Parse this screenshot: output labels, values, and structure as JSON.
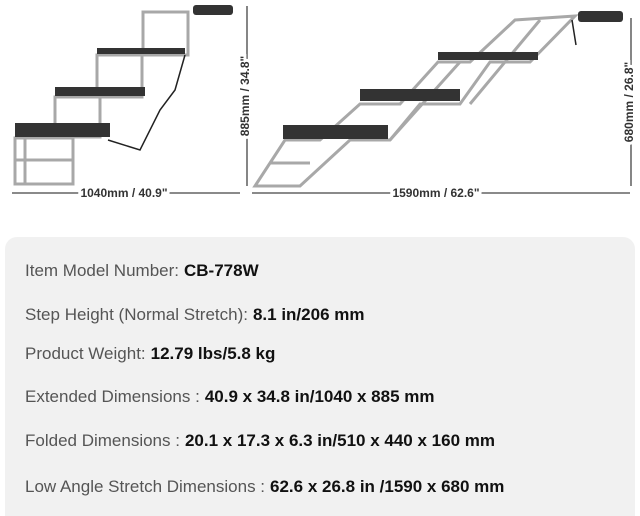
{
  "dimensions": {
    "normal": {
      "width": "1040mm / 40.9\"",
      "height": "885mm / 34.8\""
    },
    "stretch": {
      "width": "1590mm / 62.6\"",
      "height": "680mm / 26.8\""
    }
  },
  "specs": [
    {
      "label": "Item Model Number:",
      "value": "CB-778W"
    },
    {
      "label": "Step Height (Normal Stretch):",
      "value": "8.1 in/206 mm"
    },
    {
      "label": "Product Weight:",
      "value": "12.79 lbs/5.8 kg"
    },
    {
      "label": "Extended Dimensions :",
      "value": "40.9 x 34.8 in/1040 x 885 mm"
    },
    {
      "label": "Folded Dimensions :",
      "value": "20.1 x 17.3 x 6.3 in/510 x 440 x 160 mm"
    },
    {
      "label": "Low Angle Stretch Dimensions :",
      "value": "62.6 x 26.8 in /1590 x 680 mm"
    }
  ]
}
